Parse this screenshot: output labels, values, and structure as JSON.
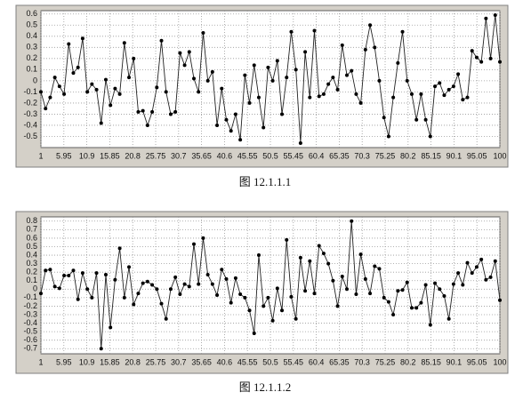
{
  "chart_data": [
    {
      "type": "line",
      "caption": "图 12.1.1.1",
      "color": "#222222",
      "grid": true,
      "markers": true,
      "x": [
        1,
        2,
        3,
        4,
        5,
        6,
        7,
        8,
        9,
        10,
        11,
        12,
        13,
        14,
        15,
        16,
        17,
        18,
        19,
        20,
        21,
        22,
        23,
        24,
        25,
        26,
        27,
        28,
        29,
        30,
        31,
        32,
        33,
        34,
        35,
        36,
        37,
        38,
        39,
        40,
        41,
        42,
        43,
        44,
        45,
        46,
        47,
        48,
        49,
        50,
        51,
        52,
        53,
        54,
        55,
        56,
        57,
        58,
        59,
        60,
        61,
        62,
        63,
        64,
        65,
        66,
        67,
        68,
        69,
        70,
        71,
        72,
        73,
        74,
        75,
        76,
        77,
        78,
        79,
        80,
        81,
        82,
        83,
        84,
        85,
        86,
        87,
        88,
        89,
        90,
        91,
        92,
        93,
        94,
        95,
        96,
        97,
        98,
        99,
        100
      ],
      "values": [
        -0.1,
        -0.25,
        -0.15,
        0.03,
        -0.05,
        -0.12,
        0.33,
        0.07,
        0.12,
        0.38,
        -0.1,
        -0.03,
        -0.08,
        -0.38,
        0.01,
        -0.22,
        -0.07,
        -0.12,
        0.34,
        0.03,
        0.2,
        -0.28,
        -0.27,
        -0.4,
        -0.28,
        -0.06,
        0.36,
        -0.1,
        -0.3,
        -0.28,
        0.25,
        0.14,
        0.26,
        0.02,
        -0.1,
        0.43,
        0.0,
        0.08,
        -0.4,
        -0.07,
        -0.35,
        -0.45,
        -0.3,
        -0.53,
        0.05,
        -0.2,
        0.14,
        -0.15,
        -0.42,
        0.12,
        0.0,
        0.18,
        -0.3,
        0.03,
        0.44,
        0.1,
        -0.56,
        0.26,
        -0.15,
        0.45,
        -0.14,
        -0.12,
        -0.03,
        0.03,
        -0.08,
        0.32,
        0.05,
        0.09,
        -0.12,
        -0.2,
        0.28,
        0.5,
        0.3,
        0.0,
        -0.33,
        -0.5,
        -0.15,
        0.16,
        0.44,
        0.0,
        -0.12,
        -0.35,
        -0.12,
        -0.35,
        -0.5,
        -0.05,
        -0.02,
        -0.13,
        -0.08,
        -0.05,
        0.06,
        -0.17,
        -0.15,
        0.27,
        0.21,
        0.17,
        0.56,
        0.2,
        0.59,
        0.17
      ],
      "xlim": [
        1,
        100
      ],
      "xticks": [
        1,
        5.95,
        10.9,
        15.85,
        20.8,
        25.75,
        30.7,
        35.65,
        40.6,
        45.55,
        50.5,
        55.45,
        60.4,
        65.35,
        70.3,
        75.25,
        80.2,
        85.15,
        90.1,
        95.05,
        100
      ],
      "ylim": [
        -0.6,
        0.63
      ],
      "yticks": [
        0.6,
        0.5,
        0.4,
        0.3,
        0.2,
        0.1,
        0,
        -0.1,
        -0.2,
        -0.3,
        -0.4,
        -0.5
      ]
    },
    {
      "type": "line",
      "caption": "图 12.1.1.2",
      "color": "#222222",
      "grid": true,
      "markers": true,
      "x": [
        1,
        2,
        3,
        4,
        5,
        6,
        7,
        8,
        9,
        10,
        11,
        12,
        13,
        14,
        15,
        16,
        17,
        18,
        19,
        20,
        21,
        22,
        23,
        24,
        25,
        26,
        27,
        28,
        29,
        30,
        31,
        32,
        33,
        34,
        35,
        36,
        37,
        38,
        39,
        40,
        41,
        42,
        43,
        44,
        45,
        46,
        47,
        48,
        49,
        50,
        51,
        52,
        53,
        54,
        55,
        56,
        57,
        58,
        59,
        60,
        61,
        62,
        63,
        64,
        65,
        66,
        67,
        68,
        69,
        70,
        71,
        72,
        73,
        74,
        75,
        76,
        77,
        78,
        79,
        80,
        81,
        82,
        83,
        84,
        85,
        86,
        87,
        88,
        89,
        90,
        91,
        92,
        93,
        94,
        95,
        96,
        97,
        98,
        99,
        100
      ],
      "values": [
        -0.05,
        0.22,
        0.23,
        0.03,
        0.01,
        0.16,
        0.16,
        0.22,
        -0.12,
        0.19,
        0.0,
        -0.1,
        0.19,
        -0.7,
        0.17,
        -0.45,
        0.11,
        0.48,
        -0.1,
        0.26,
        -0.18,
        -0.05,
        0.07,
        0.09,
        0.05,
        0.0,
        -0.17,
        -0.35,
        0.0,
        0.14,
        -0.06,
        0.06,
        0.03,
        0.53,
        0.06,
        0.6,
        0.17,
        0.06,
        -0.07,
        0.23,
        0.12,
        -0.16,
        0.13,
        -0.06,
        -0.1,
        -0.25,
        -0.52,
        0.4,
        -0.2,
        -0.1,
        -0.37,
        0.01,
        -0.25,
        0.58,
        -0.09,
        -0.35,
        0.37,
        -0.02,
        0.33,
        -0.05,
        0.51,
        0.42,
        0.3,
        0.1,
        -0.2,
        0.15,
        0.0,
        0.8,
        -0.06,
        0.41,
        0.12,
        -0.05,
        0.27,
        0.24,
        -0.1,
        -0.15,
        -0.3,
        -0.02,
        -0.01,
        0.08,
        -0.22,
        -0.22,
        -0.16,
        0.05,
        -0.42,
        0.07,
        0.0,
        -0.08,
        -0.35,
        0.06,
        0.19,
        0.05,
        0.31,
        0.19,
        0.26,
        0.35,
        0.11,
        0.14,
        0.33,
        -0.13
      ],
      "xlim": [
        1,
        100
      ],
      "xticks": [
        1,
        5.95,
        10.9,
        15.85,
        20.8,
        25.75,
        30.7,
        35.65,
        40.6,
        45.55,
        50.5,
        55.45,
        60.4,
        65.35,
        70.3,
        75.25,
        80.2,
        85.15,
        90.1,
        95.05,
        100
      ],
      "ylim": [
        -0.76,
        0.85
      ],
      "yticks": [
        0.8,
        0.7,
        0.6,
        0.5,
        0.4,
        0.3,
        0.2,
        0.1,
        0,
        -0.1,
        -0.2,
        -0.3,
        -0.4,
        -0.5,
        -0.6,
        -0.7
      ]
    }
  ]
}
